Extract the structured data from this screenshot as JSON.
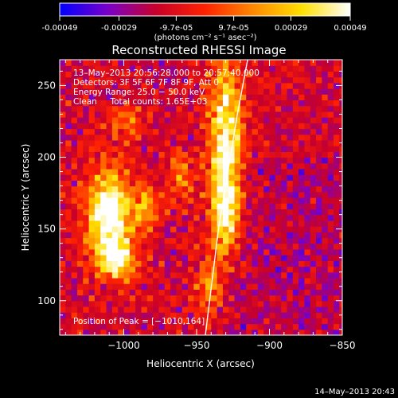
{
  "colorbar": {
    "ticks": [
      "-0.00049",
      "-0.00029",
      "-9.7e-05",
      "9.7e-05",
      "0.00029",
      "0.00049"
    ],
    "tick_values": [
      -0.00049,
      -0.00029,
      -9.7e-05,
      9.7e-05,
      0.00029,
      0.00049
    ],
    "range": [
      -0.00049,
      0.00049
    ],
    "units": "(photons cm⁻² s⁻¹ asec⁻²)",
    "colors": [
      "#0000ff",
      "#7a00c8",
      "#c8002a",
      "#ff2200",
      "#ff8a00",
      "#ffe000",
      "#ffffff"
    ]
  },
  "chart_data": {
    "type": "heatmap",
    "title": "Reconstructed RHESSI Image",
    "xlabel": "Heliocentric X (arcsec)",
    "ylabel": "Heliocentric Y (arcsec)",
    "xlim": [
      -1044,
      -850
    ],
    "ylim": [
      76,
      268
    ],
    "xticks": [
      -1000,
      -950,
      -900,
      -850
    ],
    "xtick_labels": [
      "−1000",
      "−950",
      "−900",
      "−850"
    ],
    "yticks": [
      100,
      150,
      200,
      250
    ],
    "ytick_labels": [
      "100",
      "150",
      "200",
      "250"
    ],
    "info_lines": [
      "13–May–2013 20:56:28.000 to 20:57:40.000",
      "Detectors: 3F 5F 6F 7F 8F 9F, Att 0",
      "Energy Range: 25.0 − 50.0 keV",
      "Clean     Total counts: 1.65E+03"
    ],
    "peak_label": "Position of Peak = [−1010,164]",
    "peak": [
      -1010,
      164
    ],
    "limb": [
      [
        -944,
        76
      ],
      [
        -935,
        150
      ],
      [
        -922,
        230
      ],
      [
        -915,
        268
      ]
    ],
    "sources": [
      {
        "x": -1010,
        "y": 160,
        "sx": 11,
        "sy": 22,
        "amp": 1.0
      },
      {
        "x": -1005,
        "y": 128,
        "sx": 9,
        "sy": 9,
        "amp": 0.7
      },
      {
        "x": -930,
        "y": 215,
        "sx": 8,
        "sy": 40,
        "amp": 0.85
      },
      {
        "x": -930,
        "y": 160,
        "sx": 7,
        "sy": 20,
        "amp": 0.6
      },
      {
        "x": -985,
        "y": 165,
        "sx": 6,
        "sy": 12,
        "amp": 0.45
      },
      {
        "x": -960,
        "y": 185,
        "sx": 6,
        "sy": 12,
        "amp": 0.4
      },
      {
        "x": -1000,
        "y": 225,
        "sx": 9,
        "sy": 8,
        "amp": 0.35
      },
      {
        "x": -942,
        "y": 110,
        "sx": 6,
        "sy": 14,
        "amp": 0.4
      }
    ],
    "grid": false
  },
  "footer": {
    "date": "14–May–2013 20:43"
  }
}
